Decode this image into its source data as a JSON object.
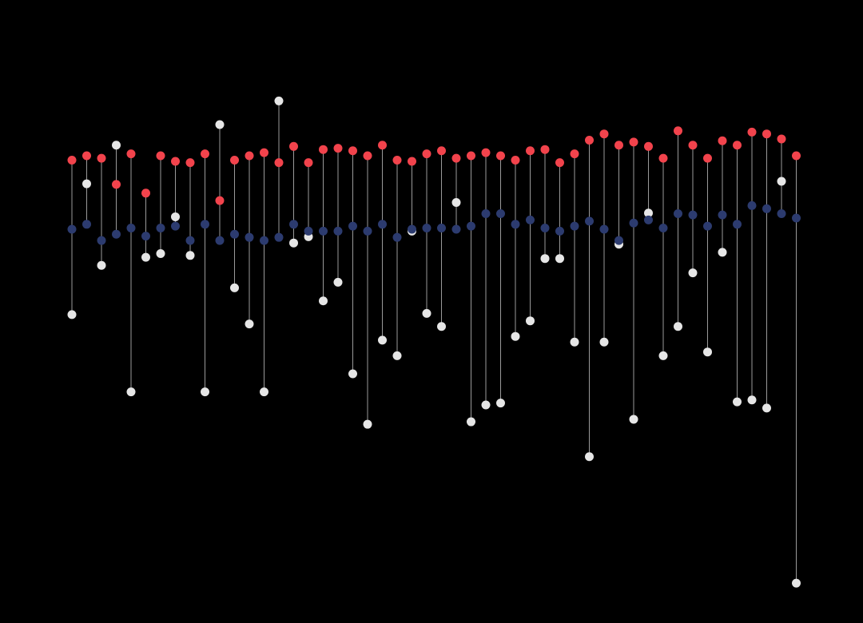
{
  "colors": {
    "background": "#000000",
    "red": "#f2434c",
    "blue": "#2c3b6f",
    "grey": "#e6e6e6",
    "stem": "#9a9a9a"
  },
  "chart_data": {
    "type": "scatter",
    "subtype": "dot-stem",
    "title": "",
    "xlabel": "",
    "ylabel": "",
    "x_range": [
      0,
      51
    ],
    "y_range": [
      0,
      1
    ],
    "grid": false,
    "legend": "none",
    "series": [
      {
        "name": "red",
        "color_key": "red",
        "values": [
          0.743,
          0.75,
          0.746,
          0.704,
          0.753,
          0.69,
          0.75,
          0.741,
          0.739,
          0.753,
          0.678,
          0.743,
          0.75,
          0.755,
          0.739,
          0.765,
          0.739,
          0.76,
          0.762,
          0.758,
          0.75,
          0.767,
          0.743,
          0.741,
          0.753,
          0.758,
          0.746,
          0.75,
          0.755,
          0.75,
          0.743,
          0.758,
          0.76,
          0.739,
          0.753,
          0.775,
          0.785,
          0.767,
          0.772,
          0.765,
          0.746,
          0.79,
          0.767,
          0.746,
          0.774,
          0.767,
          0.788,
          0.785,
          0.777,
          0.75
        ]
      },
      {
        "name": "blue",
        "color_key": "blue",
        "values": [
          0.632,
          0.64,
          0.614,
          0.624,
          0.634,
          0.621,
          0.634,
          0.637,
          0.614,
          0.64,
          0.614,
          0.624,
          0.619,
          0.614,
          0.619,
          0.64,
          0.629,
          0.629,
          0.629,
          0.637,
          0.629,
          0.64,
          0.619,
          0.632,
          0.634,
          0.634,
          0.632,
          0.637,
          0.657,
          0.657,
          0.64,
          0.647,
          0.634,
          0.629,
          0.637,
          0.645,
          0.632,
          0.614,
          0.642,
          0.647,
          0.634,
          0.657,
          0.655,
          0.637,
          0.655,
          0.64,
          0.67,
          0.665,
          0.657,
          0.65
        ]
      },
      {
        "name": "grey",
        "color_key": "grey",
        "values": [
          0.495,
          0.705,
          0.574,
          0.767,
          0.371,
          0.587,
          0.593,
          0.652,
          0.59,
          0.371,
          0.8,
          0.538,
          0.48,
          0.371,
          0.838,
          0.61,
          0.62,
          0.517,
          0.547,
          0.4,
          0.319,
          0.454,
          0.429,
          0.629,
          0.497,
          0.476,
          0.675,
          0.323,
          0.35,
          0.353,
          0.46,
          0.485,
          0.585,
          0.585,
          0.451,
          0.267,
          0.451,
          0.608,
          0.327,
          0.658,
          0.429,
          0.476,
          0.562,
          0.435,
          0.595,
          0.355,
          0.358,
          0.345,
          0.709,
          0.064
        ]
      }
    ]
  }
}
